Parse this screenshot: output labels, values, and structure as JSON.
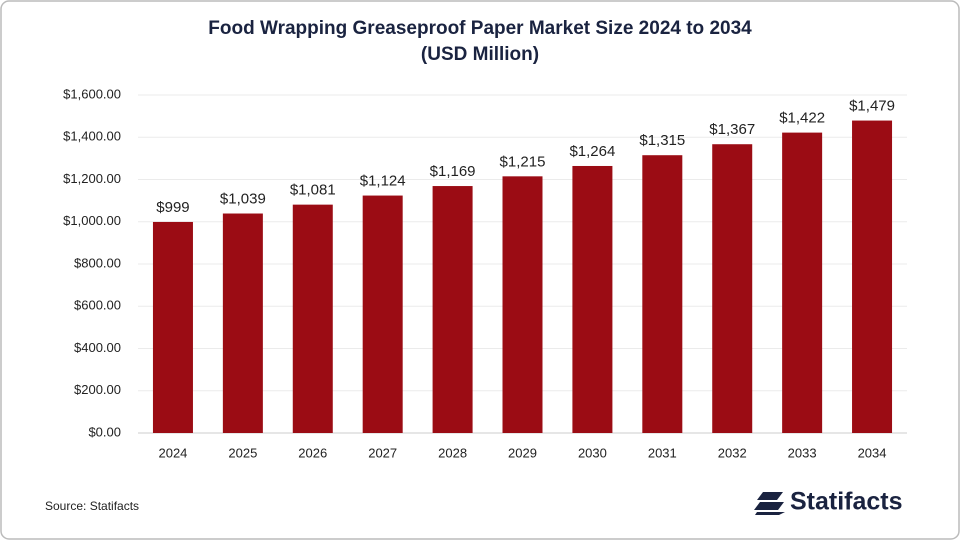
{
  "chart_data": {
    "type": "bar",
    "title": "Food Wrapping Greaseproof Paper Market Size 2024 to 2034",
    "subtitle": "(USD Million)",
    "categories": [
      "2024",
      "2025",
      "2026",
      "2027",
      "2028",
      "2029",
      "2030",
      "2031",
      "2032",
      "2033",
      "2034"
    ],
    "values": [
      999,
      1039,
      1081,
      1124,
      1169,
      1215,
      1264,
      1315,
      1367,
      1422,
      1479
    ],
    "value_labels": [
      "$999",
      "$1,039",
      "$1,081",
      "$1,124",
      "$1,169",
      "$1,215",
      "$1,264",
      "$1,315",
      "$1,367",
      "$1,422",
      "$1,479"
    ],
    "color": "#9b0c14",
    "ylim": [
      0,
      1600
    ],
    "yticks": [
      {
        "value": 0,
        "label": "$0.00"
      },
      {
        "value": 200,
        "label": "$200.00"
      },
      {
        "value": 400,
        "label": "$400.00"
      },
      {
        "value": 600,
        "label": "$600.00"
      },
      {
        "value": 800,
        "label": "$800.00"
      },
      {
        "value": 1000,
        "label": "$1,000.00"
      },
      {
        "value": 1200,
        "label": "$1,200.00"
      },
      {
        "value": 1400,
        "label": "$1,400.00"
      },
      {
        "value": 1600,
        "label": "$1,600.00"
      }
    ],
    "grid": true,
    "source": "Source: Statifacts",
    "brand": "Statifacts"
  }
}
